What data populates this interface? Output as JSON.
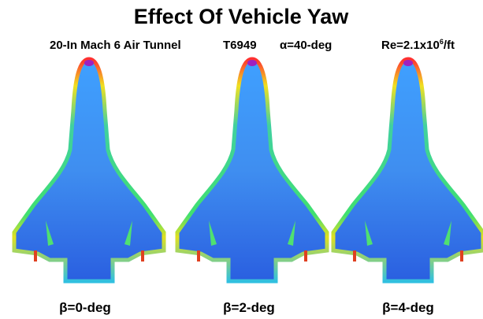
{
  "header": {
    "title": "Effect Of Vehicle Yaw",
    "subtitle": {
      "facility": "20-In Mach 6 Air Tunnel",
      "test": "T6949",
      "alpha": "α=40-deg",
      "reynolds": "Re=2.1x10",
      "exponent": "6",
      "unit": "/ft"
    }
  },
  "panels": [
    {
      "label": "β=0-deg"
    },
    {
      "label": "β=2-deg"
    },
    {
      "label": "β=4-deg"
    }
  ]
}
